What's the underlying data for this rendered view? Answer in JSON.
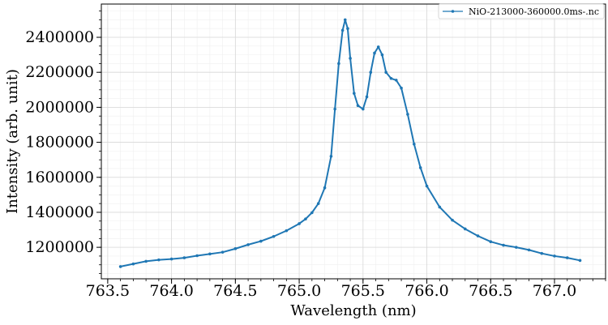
{
  "chart_data": {
    "type": "line",
    "xlabel": "Wavelength (nm)",
    "ylabel": "Intensity (arb. unit)",
    "xlim": [
      763.45,
      767.4
    ],
    "ylim": [
      1020000,
      2590000
    ],
    "xticks": [
      763.5,
      764.0,
      764.5,
      765.0,
      765.5,
      766.0,
      766.5,
      767.0
    ],
    "xtick_labels": [
      "763.5",
      "764.0",
      "764.5",
      "765.0",
      "765.5",
      "766.0",
      "766.5",
      "767.0"
    ],
    "yticks": [
      1200000,
      1400000,
      1600000,
      1800000,
      2000000,
      2200000,
      2400000
    ],
    "ytick_labels": [
      "1200000",
      "1400000",
      "1600000",
      "1800000",
      "2000000",
      "2200000",
      "2400000"
    ],
    "grid": true,
    "legend_position": "top-right",
    "series": [
      {
        "name": "NiO-213000-360000.0ms-.nc",
        "color": "#1f77b4",
        "x": [
          763.6,
          763.7,
          763.8,
          763.9,
          764.0,
          764.1,
          764.2,
          764.3,
          764.4,
          764.5,
          764.6,
          764.7,
          764.8,
          764.9,
          765.0,
          765.05,
          765.1,
          765.15,
          765.2,
          765.25,
          765.28,
          765.31,
          765.34,
          765.36,
          765.38,
          765.4,
          765.43,
          765.46,
          765.5,
          765.53,
          765.56,
          765.59,
          765.62,
          765.65,
          765.68,
          765.72,
          765.76,
          765.8,
          765.85,
          765.9,
          765.95,
          766.0,
          766.1,
          766.2,
          766.3,
          766.4,
          766.5,
          766.6,
          766.7,
          766.8,
          766.9,
          767.0,
          767.1,
          767.2
        ],
        "y": [
          1090000,
          1105000,
          1120000,
          1128000,
          1133000,
          1140000,
          1152000,
          1162000,
          1172000,
          1192000,
          1215000,
          1235000,
          1262000,
          1295000,
          1335000,
          1362000,
          1398000,
          1450000,
          1540000,
          1720000,
          1990000,
          2250000,
          2440000,
          2500000,
          2450000,
          2280000,
          2080000,
          2010000,
          1990000,
          2060000,
          2200000,
          2310000,
          2345000,
          2300000,
          2200000,
          2165000,
          2155000,
          2110000,
          1960000,
          1790000,
          1655000,
          1550000,
          1430000,
          1355000,
          1305000,
          1265000,
          1232000,
          1212000,
          1200000,
          1185000,
          1165000,
          1150000,
          1140000,
          1125000
        ]
      }
    ]
  }
}
